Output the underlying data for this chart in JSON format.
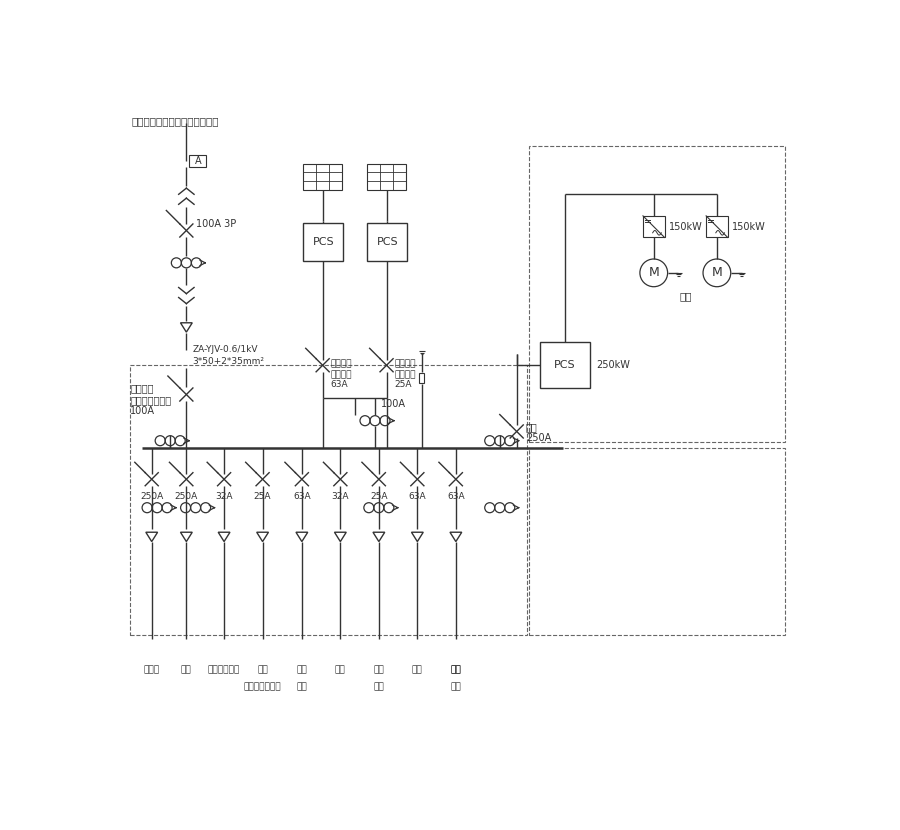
{
  "bg_color": "#ffffff",
  "lc": "#333333",
  "lw": 1.0,
  "top_label": "現有低壓柜（冷機水泵配電柜）",
  "cable_label1": "ZA-YJV-0.6/1kV",
  "cable_label2": "3*50+2*35mm²",
  "mains_label1": "市電進線",
  "mains_label2": "加防逆功率裝置",
  "mains_label3": "100A",
  "breaker_label": "100A 3P",
  "pv1_labels": [
    "光伏進線",
    "失壓脫扣",
    "63A"
  ],
  "pv2_labels": [
    "光伏進線",
    "失壓脫扣",
    "25A"
  ],
  "fly_sw_label1": "飛輪",
  "fly_sw_label2": "250A",
  "pcs_250kw_label": "250kW",
  "inv_150kw": "150kW",
  "flywheel_cn": "飛輪",
  "busbar_100A": "100A",
  "amps": [
    "250A",
    "250A",
    "32A",
    "25A",
    "63A",
    "32A",
    "25A",
    "63A",
    "63A"
  ],
  "bottom_row1": [
    "充電樁",
    "備用",
    "飛輪輔助電源",
    "備用",
    "備用",
    "備用",
    "備用",
    "備用"
  ],
  "bottom_row2": [
    "",
    "",
    "",
    "磁懸浮軸承電源",
    "備用",
    "",
    "備用",
    ""
  ],
  "font_cn": "SimHei"
}
